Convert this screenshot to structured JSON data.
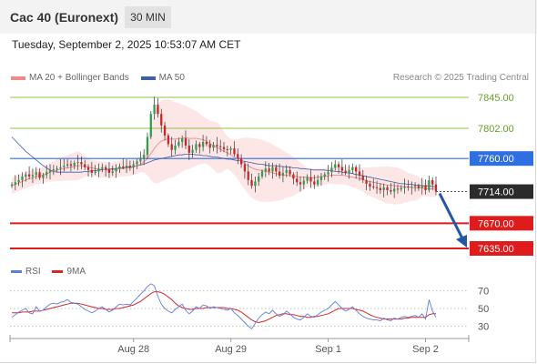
{
  "header": {
    "title": "Cac 40 (Euronext)",
    "timeframe": "30 MIN",
    "datetime": "Tuesday, September 2, 2025 10:53:07 AM CET"
  },
  "legend": {
    "ma20_label": "MA 20 + Bollinger Bands",
    "ma50_label": "MA 50",
    "credit": "Research © 2025 Trading Central"
  },
  "rsi_legend": {
    "rsi_label": "RSI",
    "ma_label": "9MA"
  },
  "colors": {
    "up_candle": "#2e9e4f",
    "down_candle": "#c62828",
    "ma20": "#f08a8a",
    "bollinger_fill": "#fde3e3",
    "ma50": "#3f5fa8",
    "resistance_green": "#8bc34a",
    "pivot_blue": "#2f6fe0",
    "support_red": "#e01b1b",
    "arrow": "#2456a6",
    "rsi": "#5b7fe0",
    "rsi_ma": "#d62828"
  },
  "chart_data": [
    {
      "type": "candlestick",
      "title": "Cac 40 (Euronext) 30 MIN",
      "x_labels": [
        "Aug 28",
        "Aug 29",
        "Sep 1",
        "Sep 2"
      ],
      "ylim": [
        7622,
        7855
      ],
      "levels": [
        {
          "value": 7845.0,
          "label": "7845.00",
          "kind": "resistance"
        },
        {
          "value": 7802.0,
          "label": "7802.00",
          "kind": "resistance"
        },
        {
          "value": 7760.0,
          "label": "7760.00",
          "kind": "pivot"
        },
        {
          "value": 7714.0,
          "label": "7714.00",
          "kind": "last_price"
        },
        {
          "value": 7670.0,
          "label": "7670.00",
          "kind": "support"
        },
        {
          "value": 7635.0,
          "label": "7635.00",
          "kind": "support"
        }
      ],
      "close": [
        7724,
        7727,
        7730,
        7735,
        7738,
        7735,
        7737,
        7741,
        7733,
        7737,
        7741,
        7744,
        7745,
        7746,
        7748,
        7750,
        7752,
        7750,
        7754,
        7755,
        7752,
        7748,
        7744,
        7740,
        7742,
        7746,
        7748,
        7745,
        7740,
        7742,
        7746,
        7749,
        7748,
        7750,
        7748,
        7752,
        7756,
        7760,
        7765,
        7790,
        7822,
        7835,
        7822,
        7806,
        7792,
        7780,
        7772,
        7778,
        7783,
        7788,
        7778,
        7768,
        7772,
        7780,
        7776,
        7783,
        7780,
        7775,
        7779,
        7777,
        7776,
        7773,
        7772,
        7774,
        7766,
        7760,
        7752,
        7742,
        7730,
        7722,
        7728,
        7735,
        7742,
        7746,
        7742,
        7748,
        7742,
        7736,
        7740,
        7744,
        7738,
        7732,
        7727,
        7724,
        7729,
        7734,
        7728,
        7724,
        7730,
        7735,
        7738,
        7741,
        7747,
        7752,
        7748,
        7743,
        7740,
        7744,
        7748,
        7742,
        7736,
        7730,
        7725,
        7721,
        7720,
        7719,
        7716,
        7720,
        7716,
        7714,
        7718,
        7717,
        7719,
        7721,
        7720,
        7721,
        7722,
        7719,
        7723,
        7716,
        7730,
        7724,
        7714
      ],
      "ma20": [
        7722,
        7724,
        7726,
        7728,
        7730,
        7732,
        7733,
        7735,
        7736,
        7737,
        7739,
        7741,
        7742,
        7744,
        7745,
        7746,
        7747,
        7748,
        7749,
        7750,
        7750,
        7749,
        7748,
        7747,
        7746,
        7745,
        7745,
        7744,
        7744,
        7744,
        7745,
        7746,
        7746,
        7747,
        7747,
        7748,
        7750,
        7752,
        7755,
        7760,
        7767,
        7774,
        7780,
        7784,
        7786,
        7787,
        7787,
        7787,
        7788,
        7788,
        7789,
        7788,
        7788,
        7788,
        7787,
        7786,
        7784,
        7781,
        7778,
        7775,
        7773,
        7770,
        7768,
        7765,
        7762,
        7759,
        7756,
        7753,
        7750,
        7747,
        7745,
        7744,
        7743,
        7742,
        7741,
        7740,
        7739,
        7738,
        7737,
        7737,
        7736,
        7735,
        7735,
        7734,
        7734,
        7734,
        7733,
        7733,
        7734,
        7735,
        7735,
        7736,
        7737,
        7737,
        7737,
        7737,
        7736,
        7735,
        7734,
        7733,
        7732,
        7731,
        7729,
        7728,
        7727,
        7726,
        7725,
        7724,
        7723,
        7723,
        7722,
        7722,
        7721,
        7721,
        7720,
        7720,
        7719,
        7719,
        7719,
        7718,
        7718,
        7718,
        7717
      ],
      "ma50": [
        7790,
        7785,
        7780,
        7775,
        7770,
        7766,
        7762,
        7758,
        7754,
        7750,
        7747,
        7744,
        7742,
        7741,
        7741,
        7741,
        7741,
        7741,
        7741,
        7741,
        7741,
        7742,
        7742,
        7743,
        7743,
        7744,
        7744,
        7745,
        7745,
        7746,
        7746,
        7747,
        7747,
        7748,
        7748,
        7749,
        7750,
        7751,
        7752,
        7754,
        7756,
        7758,
        7759,
        7760,
        7761,
        7762,
        7763,
        7764,
        7765,
        7765,
        7766,
        7766,
        7766,
        7765,
        7765,
        7764,
        7764,
        7763,
        7762,
        7762,
        7761,
        7760,
        7759,
        7759,
        7758,
        7757,
        7757,
        7756,
        7755,
        7754,
        7753,
        7752,
        7752,
        7751,
        7750,
        7750,
        7750,
        7749,
        7749,
        7748,
        7748,
        7747,
        7747,
        7746,
        7746,
        7745,
        7745,
        7744,
        7744,
        7744,
        7744,
        7743,
        7743,
        7742,
        7742,
        7741,
        7740,
        7740,
        7739,
        7738,
        7737,
        7736,
        7735,
        7734,
        7733,
        7732,
        7731,
        7730,
        7729,
        7728,
        7727,
        7726,
        7725,
        7725,
        7724,
        7724,
        7723,
        7723,
        7722,
        7722,
        7722,
        7721,
        7721
      ]
    },
    {
      "type": "line",
      "title": "RSI",
      "ylim": [
        20,
        80
      ],
      "y_ticks": [
        70,
        50,
        30
      ],
      "series": [
        {
          "name": "RSI",
          "values": [
            40,
            43,
            46,
            48,
            50,
            45,
            44,
            52,
            47,
            48,
            52,
            55,
            56,
            55,
            57,
            58,
            60,
            57,
            56,
            55,
            52,
            49,
            47,
            45,
            47,
            50,
            52,
            49,
            46,
            48,
            52,
            55,
            54,
            55,
            54,
            58,
            62,
            66,
            70,
            75,
            78,
            76,
            64,
            55,
            50,
            47,
            45,
            49,
            52,
            55,
            48,
            44,
            47,
            52,
            50,
            54,
            53,
            50,
            52,
            51,
            50,
            49,
            48,
            50,
            45,
            42,
            38,
            34,
            30,
            27,
            33,
            39,
            43,
            46,
            44,
            48,
            44,
            41,
            43,
            47,
            44,
            40,
            38,
            37,
            40,
            44,
            41,
            40,
            43,
            46,
            48,
            50,
            54,
            58,
            54,
            50,
            47,
            49,
            52,
            48,
            44,
            41,
            39,
            38,
            37,
            37,
            36,
            39,
            37,
            36,
            39,
            38,
            40,
            41,
            40,
            41,
            42,
            40,
            44,
            38,
            60,
            47,
            40
          ]
        },
        {
          "name": "9MA",
          "values": [
            45,
            45,
            45,
            46,
            46,
            46,
            47,
            47,
            47,
            48,
            49,
            50,
            51,
            52,
            53,
            54,
            55,
            56,
            56,
            56,
            55,
            54,
            53,
            52,
            51,
            50,
            50,
            49,
            49,
            49,
            50,
            50,
            51,
            52,
            53,
            54,
            56,
            58,
            61,
            64,
            67,
            69,
            69,
            68,
            66,
            63,
            60,
            56,
            53,
            51,
            50,
            49,
            49,
            50,
            50,
            50,
            51,
            51,
            51,
            51,
            51,
            51,
            50,
            50,
            49,
            48,
            46,
            43,
            40,
            37,
            35,
            34,
            35,
            36,
            38,
            40,
            42,
            43,
            44,
            44,
            43,
            43,
            42,
            41,
            41,
            40,
            40,
            41,
            41,
            42,
            43,
            44,
            46,
            48,
            50,
            50,
            50,
            50,
            50,
            49,
            48,
            47,
            45,
            43,
            41,
            40,
            39,
            38,
            38,
            38,
            38,
            38,
            38,
            39,
            39,
            40,
            40,
            40,
            40,
            40,
            43,
            44,
            44
          ]
        }
      ]
    }
  ]
}
